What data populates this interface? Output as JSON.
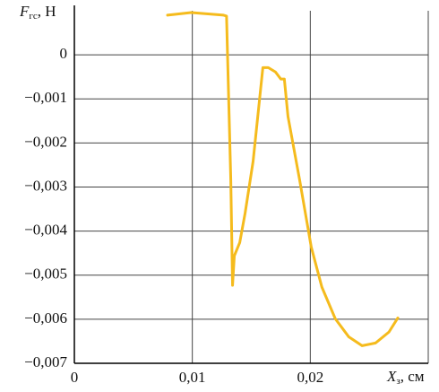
{
  "chart_data": {
    "type": "line",
    "y_label_symbol": "F",
    "y_label_sub": "гс",
    "y_label_unit": ", Н",
    "x_label_symbol": "X",
    "x_label_sub": "з",
    "x_label_unit": ", см",
    "x": [
      0.0079,
      0.0099,
      0.01265,
      0.0129,
      0.01326,
      0.01341,
      0.01356,
      0.01402,
      0.01447,
      0.01515,
      0.01598,
      0.01644,
      0.01705,
      0.0175,
      0.0178,
      0.01811,
      0.01909,
      0.02008,
      0.02098,
      0.02212,
      0.02326,
      0.02439,
      0.02553,
      0.02667,
      0.02742
    ],
    "series": [
      {
        "color": "#f5bb1d",
        "values": [
          0.0009,
          0.00096,
          0.0009,
          0.00088,
          -0.00283,
          -0.00523,
          -0.00456,
          -0.00426,
          -0.0036,
          -0.00242,
          -0.00029,
          -0.00029,
          -0.00039,
          -0.00055,
          -0.00055,
          -0.0014,
          -0.00283,
          -0.00436,
          -0.00527,
          -0.00599,
          -0.0064,
          -0.0066,
          -0.00654,
          -0.00629,
          -0.00597
        ]
      }
    ],
    "xlim": [
      0,
      0.03
    ],
    "ylim": [
      -0.007,
      0.001
    ],
    "xticks": [
      0,
      {
        "value": 0.01,
        "label": "0,01"
      },
      {
        "value": 0.02,
        "label": "0,02"
      }
    ],
    "yticks": [
      0,
      {
        "value": -0.001,
        "label": "−0,001"
      },
      {
        "value": -0.002,
        "label": "−0,002"
      },
      {
        "value": -0.003,
        "label": "−0,003"
      },
      {
        "value": -0.004,
        "label": "−0,004"
      },
      {
        "value": -0.005,
        "label": "−0,005"
      },
      {
        "value": -0.006,
        "label": "−0,006"
      },
      {
        "value": -0.007,
        "label": "−0,007"
      }
    ],
    "grid": true
  }
}
